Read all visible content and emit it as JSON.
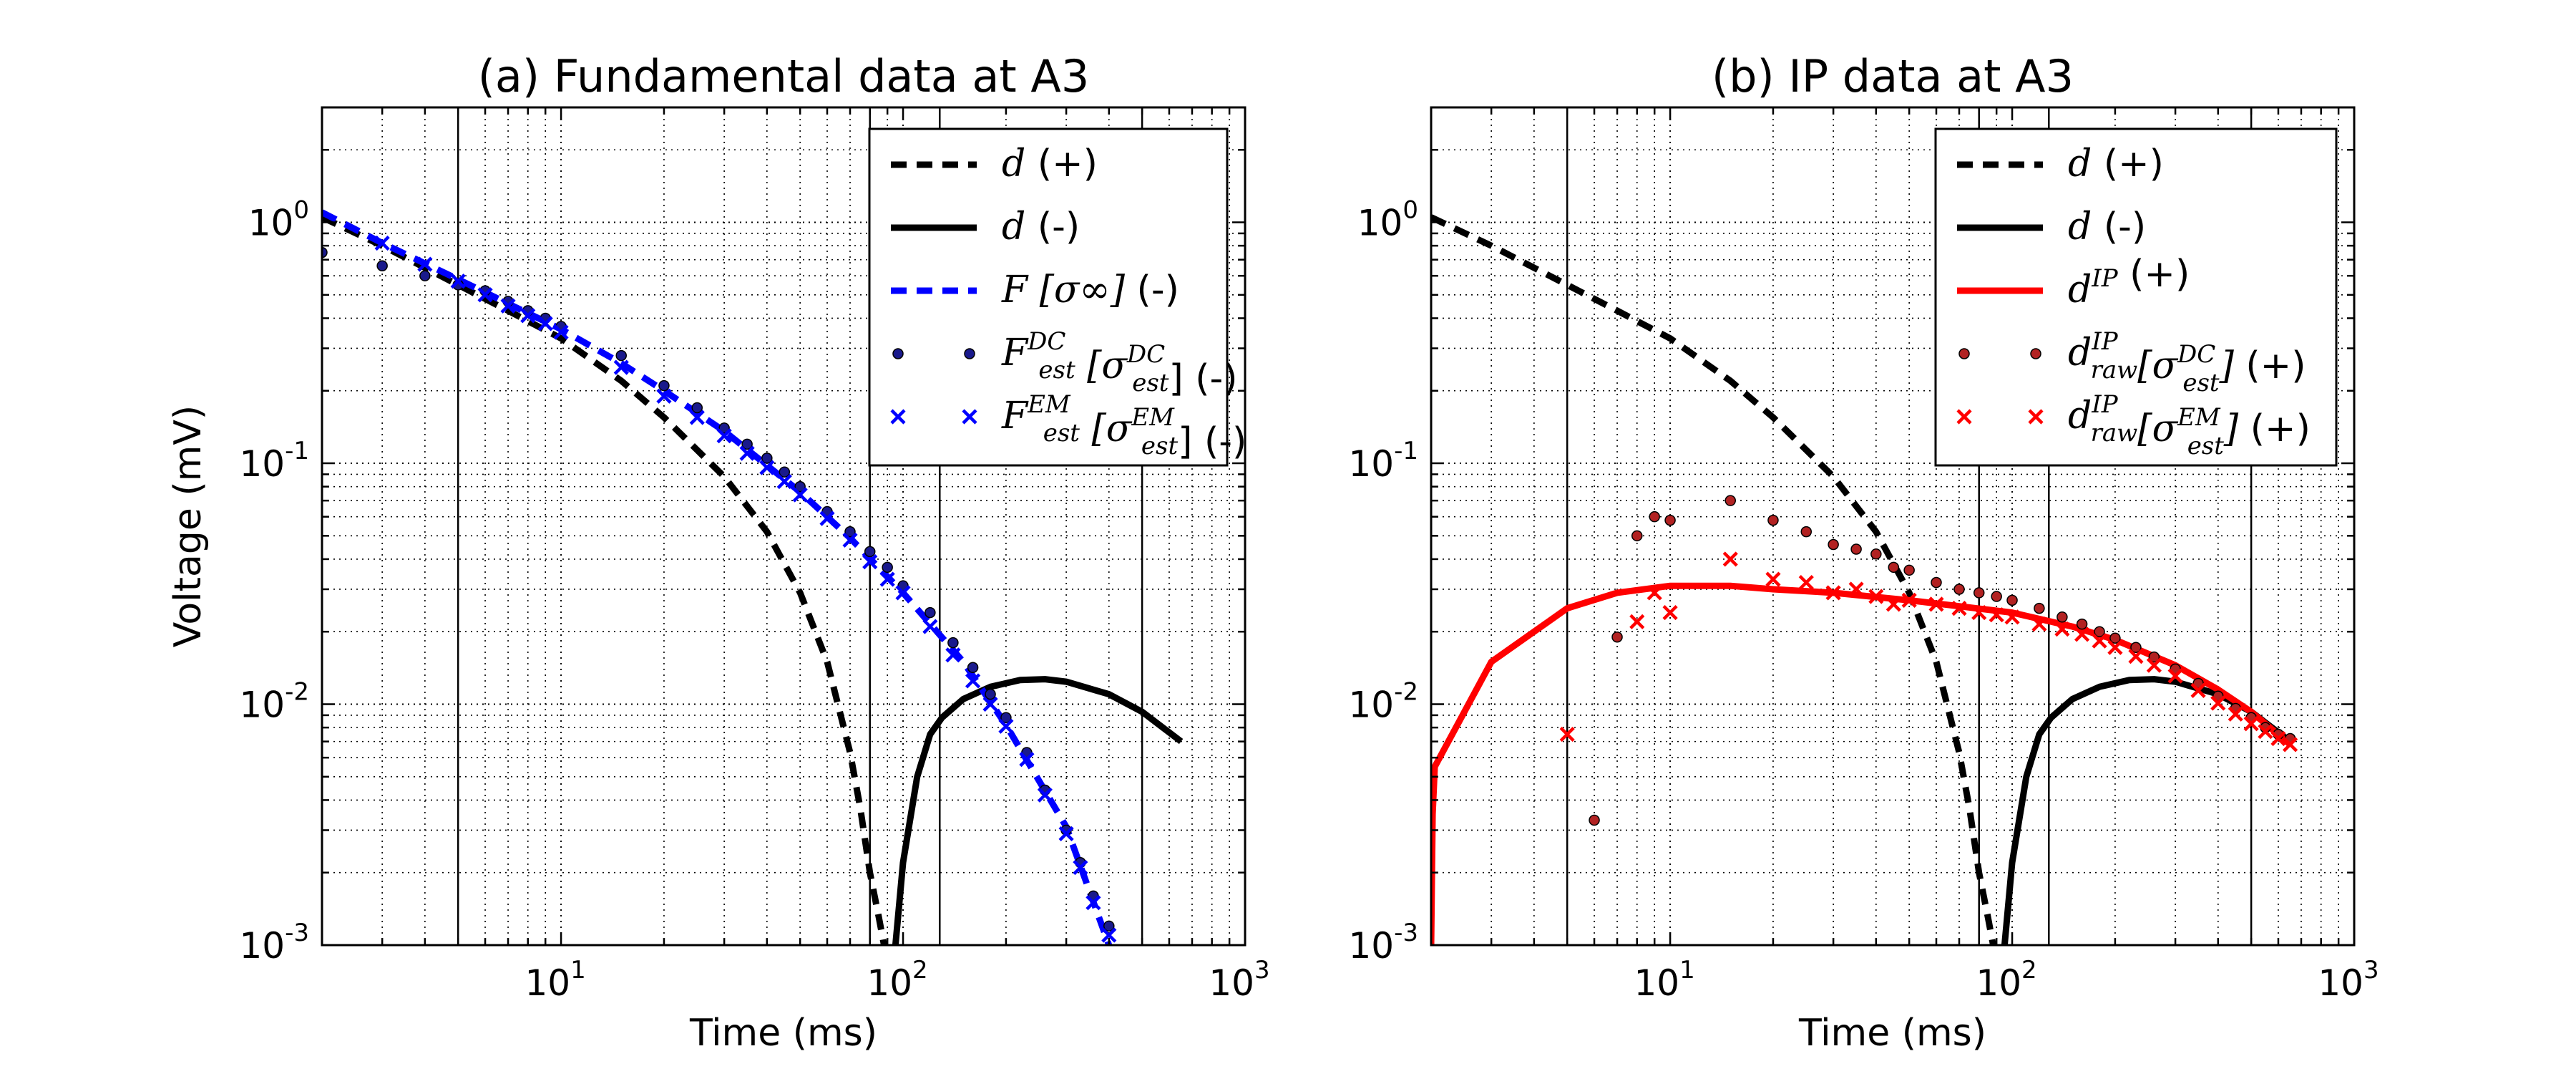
{
  "chart_data": [
    {
      "type": "line",
      "title": "(a) Fundamental data at A3",
      "xlabel": "Time (ms)",
      "ylabel": "Voltage (mV)",
      "xscale": "log",
      "yscale": "log",
      "xlim": [
        2,
        1000
      ],
      "ylim": [
        0.001,
        3
      ],
      "grid": true,
      "legend_position": "top-right",
      "x_ticks": [
        {
          "base": "10",
          "exp": "1",
          "value": 10
        },
        {
          "base": "10",
          "exp": "2",
          "value": 100
        },
        {
          "base": "10",
          "exp": "3",
          "value": 1000
        }
      ],
      "y_ticks": [
        {
          "base": "10",
          "exp": "0",
          "value": 1
        },
        {
          "base": "10",
          "exp": "-1",
          "value": 0.1
        },
        {
          "base": "10",
          "exp": "-2",
          "value": 0.01
        },
        {
          "base": "10",
          "exp": "-3",
          "value": 0.001
        }
      ],
      "vlines": [
        5,
        80,
        128,
        500
      ],
      "series": [
        {
          "name": "d (+)",
          "legend_main": "d",
          "legend_sup": "",
          "legend_sub": "",
          "legend_extra": "",
          "legend_suffix": " (+)",
          "color": "#000000",
          "style": "dashed",
          "x": [
            2,
            3,
            5,
            7,
            10,
            15,
            20,
            30,
            40,
            50,
            60,
            70,
            75,
            80,
            85,
            88
          ],
          "y": [
            1.05,
            0.8,
            0.55,
            0.43,
            0.33,
            0.22,
            0.155,
            0.088,
            0.052,
            0.029,
            0.015,
            0.0063,
            0.0037,
            0.002,
            0.0013,
            0.001
          ]
        },
        {
          "name": "d (-)",
          "legend_main": "d",
          "legend_sup": "",
          "legend_sub": "",
          "legend_extra": "",
          "legend_suffix": " (-)",
          "color": "#000000",
          "style": "solid",
          "x": [
            95,
            100,
            110,
            120,
            130,
            150,
            180,
            220,
            260,
            300,
            400,
            500,
            650
          ],
          "y": [
            0.001,
            0.0022,
            0.005,
            0.0075,
            0.0088,
            0.0105,
            0.0118,
            0.0126,
            0.0127,
            0.0124,
            0.011,
            0.0093,
            0.007
          ]
        },
        {
          "name": "F[σ∞] (-)",
          "legend_main": "F",
          "legend_sup": "",
          "legend_sub": "",
          "legend_extra": "[σ∞]",
          "legend_suffix": " (-)",
          "color": "#0000ff",
          "style": "dashed",
          "x": [
            2,
            3,
            5,
            7,
            10,
            15,
            20,
            30,
            50,
            70,
            100,
            150,
            200,
            300,
            400
          ],
          "y": [
            1.1,
            0.82,
            0.58,
            0.46,
            0.36,
            0.26,
            0.2,
            0.136,
            0.076,
            0.049,
            0.029,
            0.015,
            0.0082,
            0.0031,
            0.001
          ]
        },
        {
          "name": "F[σ_est^DC] (-)",
          "legend_main": "F",
          "legend_sup": "DC",
          "legend_sub": "est",
          "legend_extra": "[σ",
          "legend_suffix": "] (-)",
          "color": "#1a1a8c",
          "style": "dots",
          "x": [
            2,
            3,
            4,
            5,
            6,
            7,
            8,
            9,
            10,
            15,
            20,
            25,
            30,
            35,
            40,
            45,
            50,
            60,
            70,
            80,
            90,
            100,
            120,
            140,
            160,
            180,
            200,
            230,
            260,
            300,
            330,
            360,
            400
          ],
          "y": [
            0.75,
            0.66,
            0.6,
            0.55,
            0.52,
            0.47,
            0.43,
            0.4,
            0.37,
            0.28,
            0.21,
            0.17,
            0.14,
            0.12,
            0.105,
            0.092,
            0.08,
            0.063,
            0.052,
            0.043,
            0.037,
            0.031,
            0.024,
            0.018,
            0.0142,
            0.011,
            0.0088,
            0.0063,
            0.0044,
            0.003,
            0.0022,
            0.0016,
            0.0012
          ]
        },
        {
          "name": "F[σ_est^EM] (-)",
          "legend_main": "F",
          "legend_sup": "EM",
          "legend_sub": "est",
          "legend_extra": "[σ",
          "legend_suffix": "] (-)",
          "color": "#0000ff",
          "style": "x",
          "x": [
            3,
            4,
            5,
            6,
            7,
            8,
            9,
            10,
            15,
            20,
            25,
            30,
            35,
            40,
            45,
            50,
            60,
            70,
            80,
            90,
            100,
            120,
            140,
            160,
            180,
            200,
            230,
            260,
            300,
            330,
            360,
            400
          ],
          "y": [
            0.82,
            0.67,
            0.57,
            0.5,
            0.45,
            0.41,
            0.38,
            0.35,
            0.25,
            0.19,
            0.155,
            0.13,
            0.11,
            0.096,
            0.084,
            0.074,
            0.059,
            0.048,
            0.039,
            0.033,
            0.029,
            0.021,
            0.016,
            0.0125,
            0.01,
            0.0081,
            0.0059,
            0.0042,
            0.0029,
            0.0021,
            0.0015,
            0.0011
          ]
        }
      ]
    },
    {
      "type": "line",
      "title": "(b) IP data at A3",
      "xlabel": "Time (ms)",
      "ylabel": "",
      "xscale": "log",
      "yscale": "log",
      "xlim": [
        2,
        1000
      ],
      "ylim": [
        0.001,
        3
      ],
      "grid": true,
      "legend_position": "top-right",
      "x_ticks": [
        {
          "base": "10",
          "exp": "1",
          "value": 10
        },
        {
          "base": "10",
          "exp": "2",
          "value": 100
        },
        {
          "base": "10",
          "exp": "3",
          "value": 1000
        }
      ],
      "y_ticks": [
        {
          "base": "10",
          "exp": "0",
          "value": 1
        },
        {
          "base": "10",
          "exp": "-1",
          "value": 0.1
        },
        {
          "base": "10",
          "exp": "-2",
          "value": 0.01
        },
        {
          "base": "10",
          "exp": "-3",
          "value": 0.001
        }
      ],
      "vlines": [
        5,
        80,
        128,
        500
      ],
      "series": [
        {
          "name": "d (+)",
          "legend_main": "d",
          "legend_sup": "",
          "legend_sub": "",
          "legend_extra": "",
          "legend_suffix": " (+)",
          "color": "#000000",
          "style": "dashed",
          "x": [
            2,
            3,
            5,
            7,
            10,
            15,
            20,
            30,
            40,
            50,
            60,
            70,
            75,
            80,
            85,
            88
          ],
          "y": [
            1.05,
            0.8,
            0.55,
            0.43,
            0.33,
            0.22,
            0.155,
            0.088,
            0.052,
            0.029,
            0.015,
            0.0063,
            0.0037,
            0.002,
            0.0013,
            0.001
          ]
        },
        {
          "name": "d (-)",
          "legend_main": "d",
          "legend_sup": "",
          "legend_sub": "",
          "legend_extra": "",
          "legend_suffix": " (-)",
          "color": "#000000",
          "style": "solid",
          "x": [
            95,
            100,
            110,
            120,
            130,
            150,
            180,
            220,
            260,
            300,
            400,
            500,
            650
          ],
          "y": [
            0.001,
            0.0022,
            0.005,
            0.0075,
            0.0088,
            0.0105,
            0.0118,
            0.0126,
            0.0127,
            0.0124,
            0.011,
            0.0093,
            0.007
          ]
        },
        {
          "name": "d^IP (+)",
          "legend_main": "d",
          "legend_sup": "IP",
          "legend_sub": "",
          "legend_extra": "",
          "legend_suffix": " (+)",
          "color": "#ff0000",
          "style": "solid",
          "x": [
            2,
            2.02,
            2.05,
            3,
            5,
            7,
            10,
            15,
            20,
            30,
            50,
            70,
            100,
            150,
            200,
            300,
            400,
            500,
            650
          ],
          "y": [
            0.001,
            0.0035,
            0.0055,
            0.015,
            0.025,
            0.029,
            0.031,
            0.031,
            0.03,
            0.029,
            0.027,
            0.0255,
            0.024,
            0.021,
            0.0185,
            0.0145,
            0.0115,
            0.0093,
            0.0068
          ]
        },
        {
          "name": "d_raw^IP[σ_est^DC] (+)",
          "legend_main": "d",
          "legend_sup": "IP",
          "legend_sub": "raw",
          "legend_extra": "[σ_est^DC]",
          "legend_suffix": " (+)",
          "color": "#b22222",
          "style": "dots",
          "x": [
            6,
            7,
            8,
            9,
            10,
            15,
            20,
            25,
            30,
            35,
            40,
            45,
            50,
            60,
            70,
            80,
            90,
            100,
            120,
            140,
            160,
            180,
            200,
            230,
            260,
            300,
            350,
            400,
            450,
            500,
            550,
            600,
            650
          ],
          "y": [
            0.0033,
            0.019,
            0.05,
            0.06,
            0.058,
            0.07,
            0.058,
            0.052,
            0.046,
            0.044,
            0.042,
            0.037,
            0.036,
            0.032,
            0.03,
            0.029,
            0.028,
            0.027,
            0.025,
            0.023,
            0.0215,
            0.02,
            0.0188,
            0.0172,
            0.0157,
            0.014,
            0.0122,
            0.0108,
            0.0096,
            0.0088,
            0.008,
            0.0075,
            0.0072
          ]
        },
        {
          "name": "d_raw^IP[σ_est^EM] (+)",
          "legend_main": "d",
          "legend_sup": "IP",
          "legend_sub": "raw",
          "legend_extra": "[σ_est^EM]",
          "legend_suffix": " (+)",
          "color": "#ff0000",
          "style": "x",
          "x": [
            5,
            8,
            9,
            10,
            15,
            20,
            25,
            30,
            35,
            40,
            45,
            50,
            60,
            70,
            80,
            90,
            100,
            120,
            140,
            160,
            180,
            200,
            230,
            260,
            300,
            350,
            400,
            450,
            500,
            550,
            600,
            650
          ],
          "y": [
            0.0075,
            0.022,
            0.029,
            0.024,
            0.04,
            0.033,
            0.032,
            0.029,
            0.03,
            0.028,
            0.026,
            0.027,
            0.026,
            0.025,
            0.024,
            0.0235,
            0.023,
            0.0215,
            0.0205,
            0.0195,
            0.0183,
            0.0172,
            0.0158,
            0.0145,
            0.0131,
            0.0114,
            0.0101,
            0.0091,
            0.0083,
            0.0077,
            0.0072,
            0.0068
          ]
        }
      ]
    }
  ]
}
